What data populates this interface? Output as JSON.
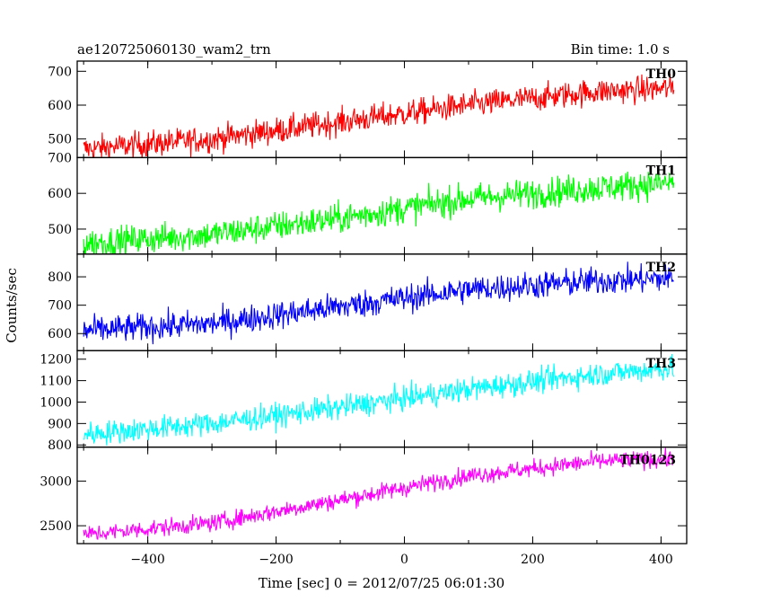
{
  "header": {
    "left": "ae120725060130_wam2_trn",
    "right": "Bin time: 1.0 s"
  },
  "chart_data": {
    "type": "line",
    "title": "ae120725060130_wam2_trn",
    "subtitle": "Bin time: 1.0 s",
    "xlabel": "Time [sec] 0 = 2012/07/25 06:01:30",
    "ylabel": "Counts/sec",
    "xlim": [
      -510,
      440
    ],
    "x_range": [
      -500,
      420
    ],
    "xticks": [
      -400,
      -200,
      0,
      200,
      400
    ],
    "xtick_labels": [
      "−400",
      "−200",
      "0",
      "200",
      "400"
    ],
    "grid": false,
    "series": [
      {
        "name": "TH0",
        "color": "#ff0000",
        "ylim": [
          445,
          730
        ],
        "yticks": [
          500,
          600,
          700
        ],
        "ytick_labels": [
          "500",
          "600",
          "700"
        ],
        "trend": [
          [
            -500,
            470
          ],
          [
            -300,
            500
          ],
          [
            -100,
            550
          ],
          [
            100,
            600
          ],
          [
            300,
            640
          ],
          [
            420,
            650
          ]
        ],
        "noise": 28
      },
      {
        "name": "TH1",
        "color": "#00ff00",
        "ylim": [
          430,
          700
        ],
        "yticks": [
          500,
          600,
          700
        ],
        "ytick_labels": [
          "500",
          "600",
          "700"
        ],
        "trend": [
          [
            -500,
            460
          ],
          [
            -300,
            485
          ],
          [
            -100,
            530
          ],
          [
            100,
            585
          ],
          [
            300,
            615
          ],
          [
            420,
            630
          ]
        ],
        "noise": 30
      },
      {
        "name": "TH2",
        "color": "#0000ff",
        "ylim": [
          540,
          880
        ],
        "yticks": [
          600,
          700,
          800
        ],
        "ytick_labels": [
          "600",
          "700",
          "800"
        ],
        "trend": [
          [
            -500,
            610
          ],
          [
            -300,
            635
          ],
          [
            -100,
            695
          ],
          [
            100,
            755
          ],
          [
            300,
            785
          ],
          [
            420,
            795
          ]
        ],
        "noise": 35
      },
      {
        "name": "TH3",
        "color": "#00ffff",
        "ylim": [
          790,
          1240
        ],
        "yticks": [
          800,
          900,
          1000,
          1100,
          1200
        ],
        "ytick_labels": [
          "800",
          "900",
          "1000",
          "1100",
          "1200"
        ],
        "trend": [
          [
            -500,
            850
          ],
          [
            -300,
            900
          ],
          [
            -100,
            975
          ],
          [
            100,
            1060
          ],
          [
            300,
            1130
          ],
          [
            420,
            1160
          ]
        ],
        "noise": 40
      },
      {
        "name": "TH0123",
        "color": "#ff00ff",
        "ylim": [
          2300,
          3380
        ],
        "yticks": [
          2500,
          3000
        ],
        "ytick_labels": [
          "2500",
          "3000"
        ],
        "trend": [
          [
            -500,
            2400
          ],
          [
            -300,
            2530
          ],
          [
            -100,
            2790
          ],
          [
            100,
            3060
          ],
          [
            300,
            3220
          ],
          [
            420,
            3250
          ]
        ],
        "noise": 70
      }
    ]
  }
}
